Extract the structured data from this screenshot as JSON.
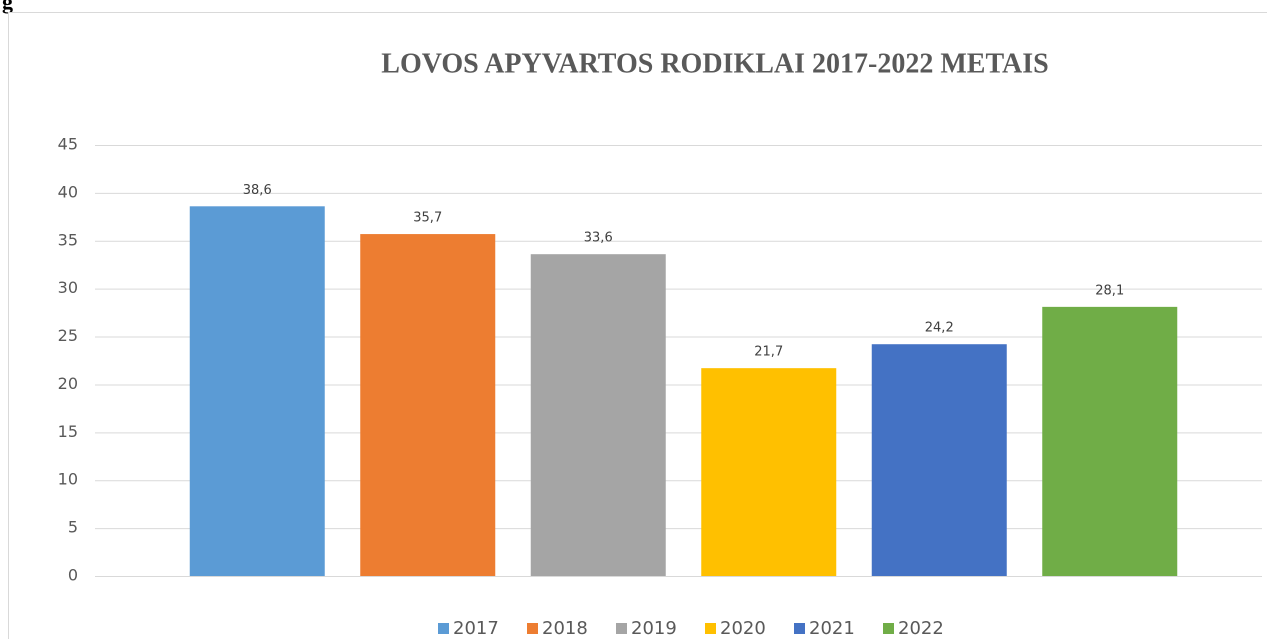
{
  "caption": "g",
  "chart_data": {
    "type": "bar",
    "title": "LOVOS APYVARTOS RODIKLAI 2017-2022 METAIS",
    "categories": [
      null
    ],
    "series": [
      {
        "name": "2017",
        "color": "#5b9bd5",
        "values": [
          38.6
        ],
        "value_labels": [
          "38,6"
        ]
      },
      {
        "name": "2018",
        "color": "#ed7d31",
        "values": [
          35.7
        ],
        "value_labels": [
          "35,7"
        ]
      },
      {
        "name": "2019",
        "color": "#a5a5a5",
        "values": [
          33.6
        ],
        "value_labels": [
          "33,6"
        ]
      },
      {
        "name": "2020",
        "color": "#ffc000",
        "values": [
          21.7
        ],
        "value_labels": [
          "21,7"
        ]
      },
      {
        "name": "2021",
        "color": "#4472c4",
        "values": [
          24.2
        ],
        "value_labels": [
          "24,2"
        ]
      },
      {
        "name": "2022",
        "color": "#70ad47",
        "values": [
          28.1
        ],
        "value_labels": [
          "28,1"
        ]
      }
    ],
    "ylim": [
      0,
      45
    ],
    "yticks": [
      0,
      5,
      10,
      15,
      20,
      25,
      30,
      35,
      40,
      45
    ],
    "grid": true,
    "legend": "bottom"
  }
}
